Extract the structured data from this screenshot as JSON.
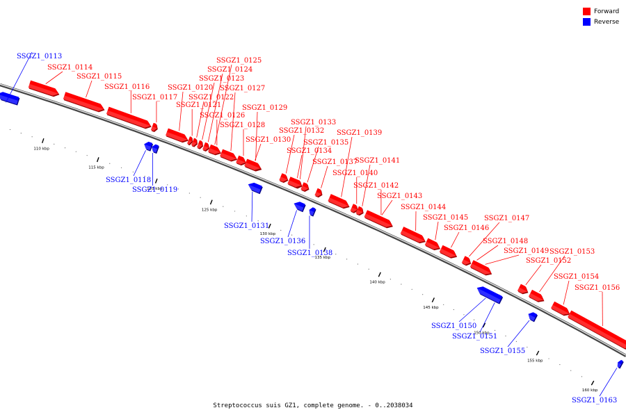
{
  "legend": {
    "forward": {
      "label": "Forward",
      "color": "#ff0000"
    },
    "reverse": {
      "label": "Reverse",
      "color": "#0000ff"
    }
  },
  "caption": "Streptococcus suis GZ1, complete genome. - 0..2038034",
  "scale": {
    "unit": "kbp",
    "major_ticks": [
      110,
      115,
      120,
      125,
      130,
      135,
      140,
      145,
      150,
      155,
      160
    ]
  },
  "genes": [
    {
      "id": "SSGZ1_0113",
      "strand": "reverse"
    },
    {
      "id": "SSGZ1_0114",
      "strand": "forward"
    },
    {
      "id": "SSGZ1_0115",
      "strand": "forward"
    },
    {
      "id": "SSGZ1_0116",
      "strand": "forward"
    },
    {
      "id": "SSGZ1_0117",
      "strand": "forward"
    },
    {
      "id": "SSGZ1_0118",
      "strand": "reverse"
    },
    {
      "id": "SSGZ1_0119",
      "strand": "reverse"
    },
    {
      "id": "SSGZ1_0120",
      "strand": "forward"
    },
    {
      "id": "SSGZ1_0121",
      "strand": "forward"
    },
    {
      "id": "SSGZ1_0122",
      "strand": "forward"
    },
    {
      "id": "SSGZ1_0123",
      "strand": "forward"
    },
    {
      "id": "SSGZ1_0124",
      "strand": "forward"
    },
    {
      "id": "SSGZ1_0125",
      "strand": "forward"
    },
    {
      "id": "SSGZ1_0126",
      "strand": "forward"
    },
    {
      "id": "SSGZ1_0127",
      "strand": "forward"
    },
    {
      "id": "SSGZ1_0128",
      "strand": "forward"
    },
    {
      "id": "SSGZ1_0129",
      "strand": "forward"
    },
    {
      "id": "SSGZ1_0130",
      "strand": "forward"
    },
    {
      "id": "SSGZ1_0131",
      "strand": "reverse"
    },
    {
      "id": "SSGZ1_0132",
      "strand": "forward"
    },
    {
      "id": "SSGZ1_0133",
      "strand": "forward"
    },
    {
      "id": "SSGZ1_0134",
      "strand": "forward"
    },
    {
      "id": "SSGZ1_0135",
      "strand": "forward"
    },
    {
      "id": "SSGZ1_0136",
      "strand": "reverse"
    },
    {
      "id": "SSGZ1_0137",
      "strand": "forward"
    },
    {
      "id": "SSGZ1_0138",
      "strand": "reverse"
    },
    {
      "id": "SSGZ1_0139",
      "strand": "forward"
    },
    {
      "id": "SSGZ1_0140",
      "strand": "forward"
    },
    {
      "id": "SSGZ1_0141",
      "strand": "forward"
    },
    {
      "id": "SSGZ1_0142",
      "strand": "forward"
    },
    {
      "id": "SSGZ1_0143",
      "strand": "forward"
    },
    {
      "id": "SSGZ1_0144",
      "strand": "forward"
    },
    {
      "id": "SSGZ1_0145",
      "strand": "forward"
    },
    {
      "id": "SSGZ1_0146",
      "strand": "forward"
    },
    {
      "id": "SSGZ1_0147",
      "strand": "forward"
    },
    {
      "id": "SSGZ1_0148",
      "strand": "forward"
    },
    {
      "id": "SSGZ1_0149",
      "strand": "forward"
    },
    {
      "id": "SSGZ1_0150",
      "strand": "reverse"
    },
    {
      "id": "SSGZ1_0151",
      "strand": "reverse"
    },
    {
      "id": "SSGZ1_0152",
      "strand": "forward"
    },
    {
      "id": "SSGZ1_0153",
      "strand": "forward"
    },
    {
      "id": "SSGZ1_0154",
      "strand": "forward"
    },
    {
      "id": "SSGZ1_0155",
      "strand": "reverse"
    },
    {
      "id": "SSGZ1_0156",
      "strand": "forward"
    },
    {
      "id": "SSGZ1_0163",
      "strand": "reverse"
    }
  ]
}
